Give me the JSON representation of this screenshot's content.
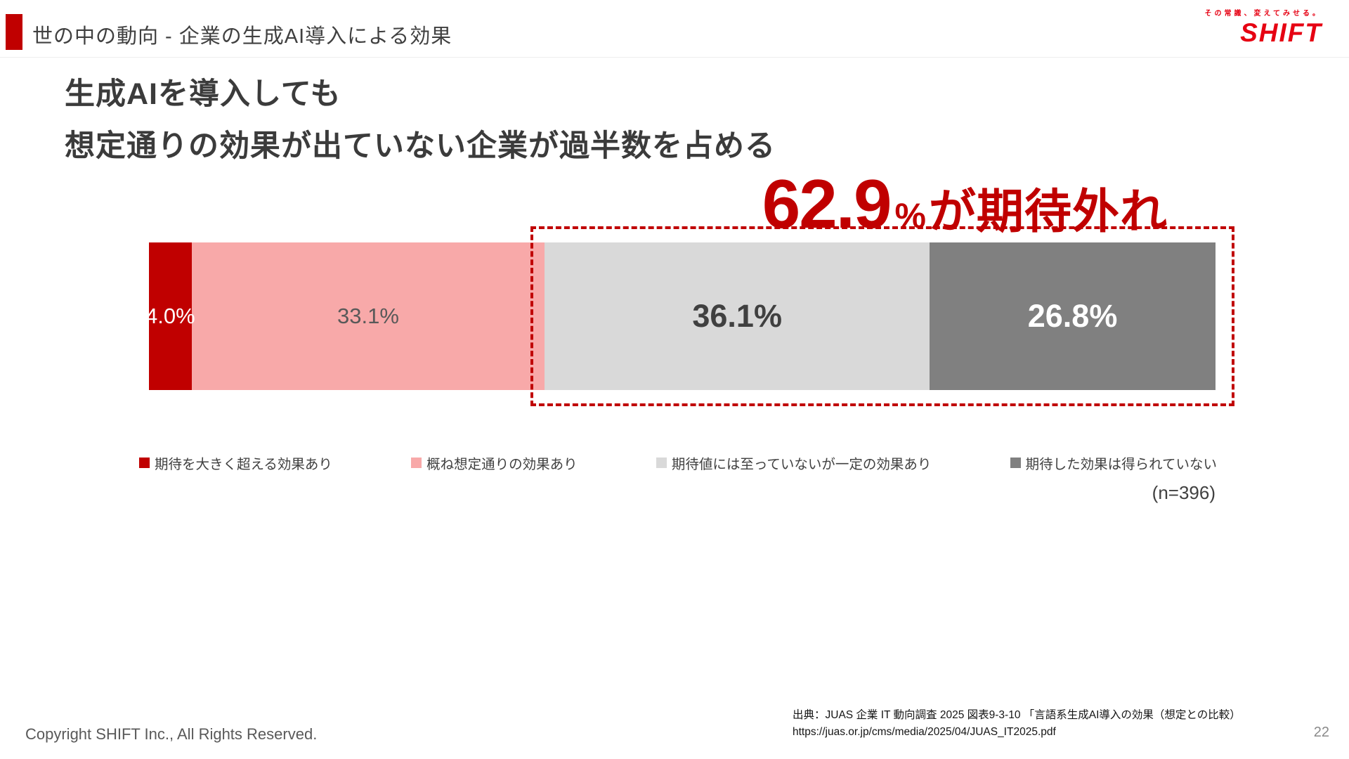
{
  "colors": {
    "accent_red": "#c00000",
    "logo_red": "#e60012",
    "pink": "#f8a9a9",
    "light_gray": "#d9d9d9",
    "dark_gray": "#808080",
    "heading_text": "#3b3b3b"
  },
  "header": {
    "title": "世の中の動向 - 企業の生成AI導入による効果",
    "logo_tagline": "その常識、変えてみせる。",
    "logo_text": "SHIFT"
  },
  "heading": {
    "line1": "生成AIを導入しても",
    "line2": "想定通りの効果が出ていない企業が過半数を占める"
  },
  "callout": {
    "value": "62.9",
    "percent_sign": "%",
    "suffix": "が期待外れ"
  },
  "chart_data": {
    "type": "bar",
    "orientation": "horizontal_stacked",
    "unit": "%",
    "xlim": [
      0,
      100
    ],
    "categories": [
      "期待を大きく超える効果あり",
      "概ね想定通りの効果あり",
      "期待値には至っていないが一定の効果あり",
      "期待した効果は得られていない"
    ],
    "values": [
      4.0,
      33.1,
      36.1,
      26.8
    ],
    "segments": [
      {
        "label": "期待を大きく超える効果あり",
        "value": 4.0,
        "display": "4.0%",
        "color": "#c00000",
        "text_color": "#ffffff",
        "emphasis": false
      },
      {
        "label": "概ね想定通りの効果あり",
        "value": 33.1,
        "display": "33.1%",
        "color": "#f8a9a9",
        "text_color": "#595959",
        "emphasis": false
      },
      {
        "label": "期待値には至っていないが一定の効果あり",
        "value": 36.1,
        "display": "36.1%",
        "color": "#d9d9d9",
        "text_color": "#404040",
        "emphasis": true
      },
      {
        "label": "期待した効果は得られていない",
        "value": 26.8,
        "display": "26.8%",
        "color": "#808080",
        "text_color": "#ffffff",
        "emphasis": true
      }
    ],
    "highlight": {
      "from_segment": 2,
      "total": 62.9
    },
    "n_label": "(n=396)"
  },
  "footer": {
    "copyright": "Copyright SHIFT Inc., All Rights Reserved.",
    "source_line1": "出典：JUAS 企業 IT 動向調査 2025 図表9-3-10 「言語系生成AI導入の効果（想定との比較）",
    "source_line2": "https://juas.or.jp/cms/media/2025/04/JUAS_IT2025.pdf",
    "page_number": "22"
  }
}
